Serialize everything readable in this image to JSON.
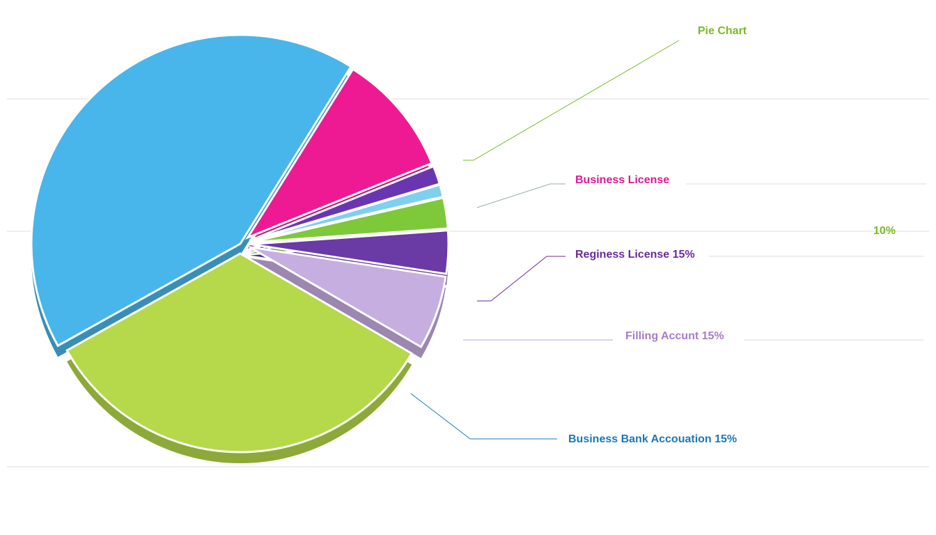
{
  "chart_data": {
    "type": "pie",
    "title": "Pie Chart",
    "categories": [
      null,
      null,
      null,
      null,
      null,
      null,
      null,
      null
    ],
    "values": [
      10,
      1.5,
      1,
      2.5,
      3.5,
      6,
      33.5,
      42
    ],
    "colors": [
      "#ee1a93",
      "#6a35b0",
      "#7fd0f0",
      "#7ec93a",
      "#6a3aa5",
      "#c7aee0",
      "#b5d94a",
      "#48b6ea"
    ],
    "annotations": [
      {
        "text": "Business License",
        "color": "#e0189a"
      },
      {
        "text": "10%",
        "color": "#7ab829"
      },
      {
        "text": "Reginess License 15%",
        "color": "#6a2a9a"
      },
      {
        "text": "Filling Accunt 15%",
        "color": "#a77cc9"
      },
      {
        "text": "Business Bank Accouation 15%",
        "color": "#1a78b8"
      }
    ],
    "title_color": "#7ab829"
  }
}
